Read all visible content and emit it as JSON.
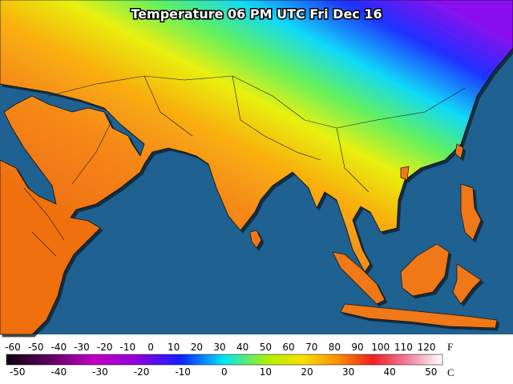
{
  "title": "Temperature 06 PM UTC Fri Dec 16",
  "legend": {
    "fahrenheit": {
      "unit": "F",
      "labels": [
        -60,
        -50,
        -40,
        -30,
        -20,
        -10,
        0,
        10,
        20,
        30,
        40,
        50,
        60,
        70,
        80,
        90,
        100,
        110,
        120
      ]
    },
    "celsius": {
      "unit": "C",
      "labels": [
        -50,
        -40,
        -30,
        -20,
        -10,
        0,
        10,
        20,
        30,
        40,
        50
      ]
    }
  }
}
